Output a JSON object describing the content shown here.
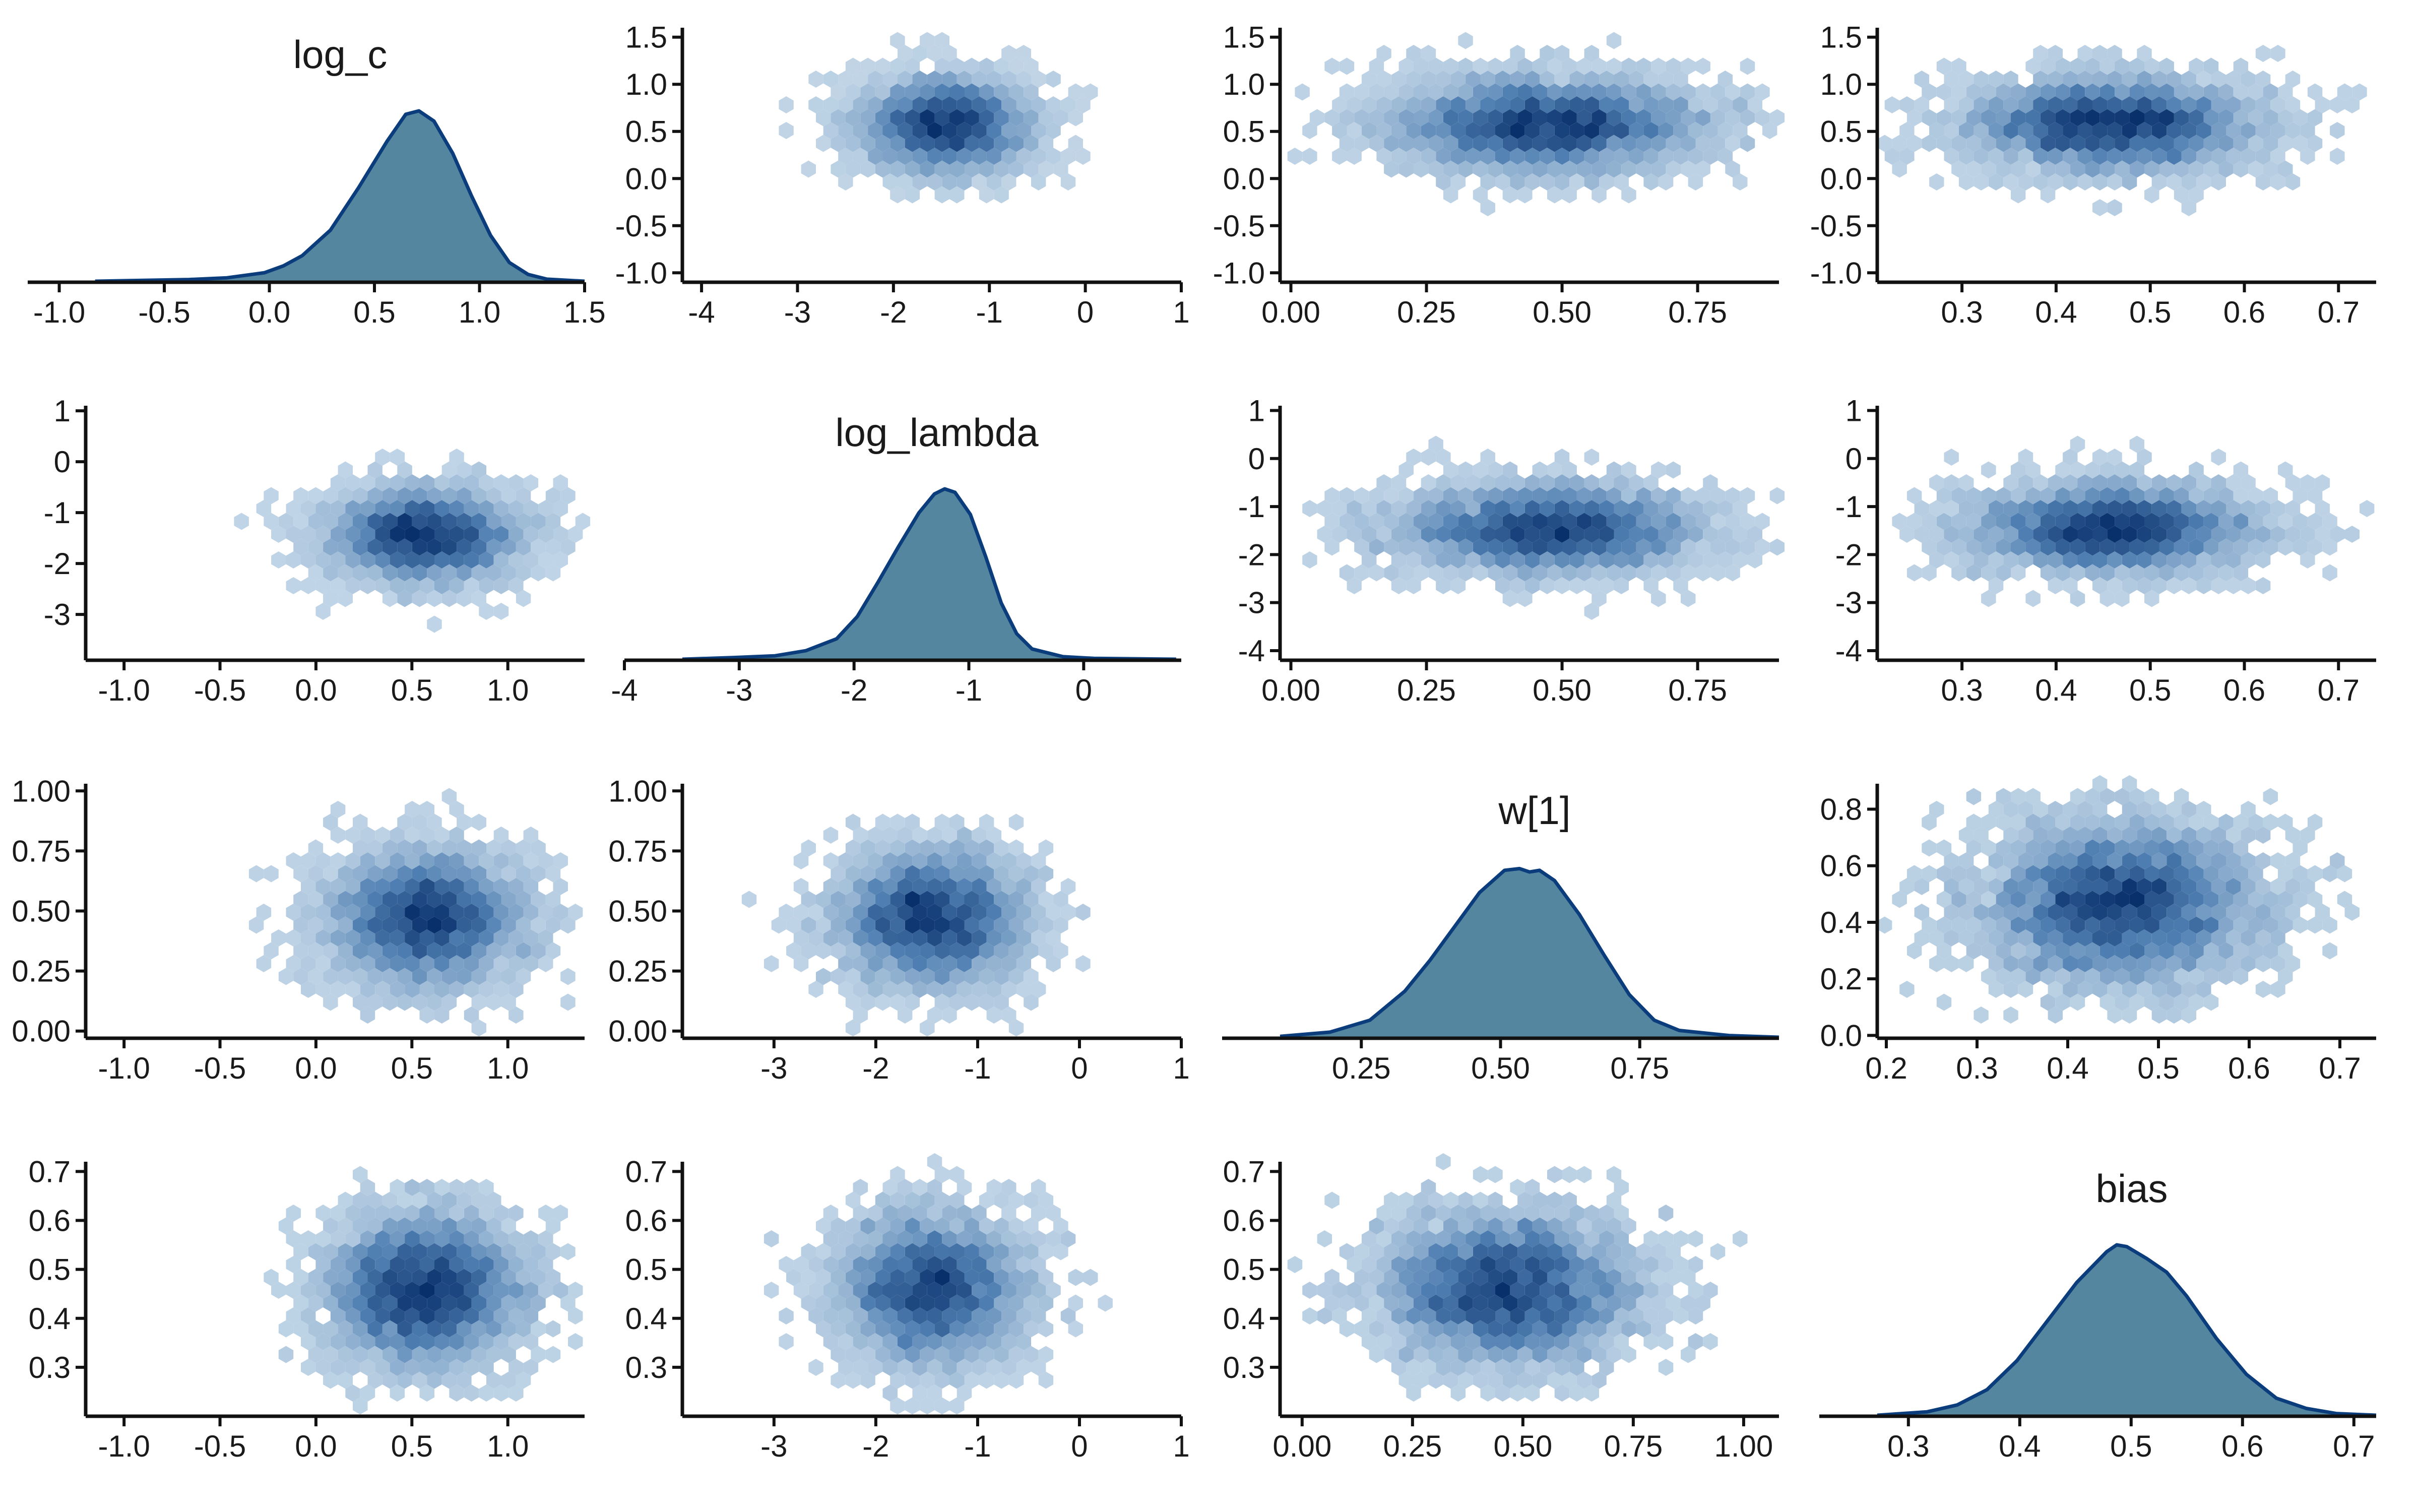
{
  "colors": {
    "density_fill": "#55869f",
    "density_line": "#0b3d7c",
    "hex_light": "#c6d9e9",
    "hex_mid": "#4f7fb2",
    "hex_dark": "#08306b",
    "axis": "#111111",
    "background": "#ffffff"
  },
  "chart_data": {
    "type": "pairs",
    "variables": [
      "log_c",
      "log_lambda",
      "w[1]",
      "bias"
    ],
    "layout": "4x4 grid; diagonal = density, off-diagonal = hexbin (x = column variable, y = row variable)",
    "marginals": [
      {
        "name": "log_c",
        "mean": 0.57,
        "sd": 0.25,
        "curve": [
          [
            -1.1,
            0
          ],
          [
            -0.9,
            0.004
          ],
          [
            -0.6,
            0.01
          ],
          [
            -0.4,
            0.02
          ],
          [
            -0.2,
            0.05
          ],
          [
            -0.1,
            0.09
          ],
          [
            0,
            0.15
          ],
          [
            0.15,
            0.3
          ],
          [
            0.3,
            0.55
          ],
          [
            0.45,
            0.82
          ],
          [
            0.55,
            0.98
          ],
          [
            0.62,
            1.0
          ],
          [
            0.7,
            0.94
          ],
          [
            0.8,
            0.75
          ],
          [
            0.9,
            0.5
          ],
          [
            1.0,
            0.27
          ],
          [
            1.1,
            0.11
          ],
          [
            1.2,
            0.04
          ],
          [
            1.3,
            0.012
          ],
          [
            1.5,
            0
          ]
        ],
        "xlim": [
          -1.15,
          1.5
        ],
        "ticks": [
          -1.0,
          -0.5,
          0.0,
          0.5,
          1.0,
          1.5
        ],
        "tick_labels": [
          "-1.0",
          "-0.5",
          "0.0",
          "0.5",
          "1.0",
          "1.5"
        ]
      },
      {
        "name": "log_lambda",
        "mean": -1.45,
        "sd": 0.45,
        "curve": [
          [
            -4,
            0
          ],
          [
            -3.5,
            0.01
          ],
          [
            -3.1,
            0.02
          ],
          [
            -2.8,
            0.05
          ],
          [
            -2.5,
            0.12
          ],
          [
            -2.3,
            0.25
          ],
          [
            -2.1,
            0.45
          ],
          [
            -1.9,
            0.66
          ],
          [
            -1.7,
            0.86
          ],
          [
            -1.55,
            0.97
          ],
          [
            -1.45,
            1.0
          ],
          [
            -1.35,
            0.98
          ],
          [
            -1.2,
            0.85
          ],
          [
            -1.05,
            0.6
          ],
          [
            -0.9,
            0.33
          ],
          [
            -0.75,
            0.15
          ],
          [
            -0.6,
            0.06
          ],
          [
            -0.3,
            0.015
          ],
          [
            0,
            0.005
          ],
          [
            0.8,
            0
          ]
        ],
        "xlim": [
          -4.0,
          0.85
        ],
        "ticks": [
          -4,
          -3,
          -2,
          -1,
          0
        ],
        "tick_labels": [
          "-4",
          "-3",
          "-2",
          "-1",
          "0"
        ]
      },
      {
        "name": "w[1]",
        "mean": 0.47,
        "sd": 0.14,
        "curve": [
          [
            0,
            0.005
          ],
          [
            0.1,
            0.03
          ],
          [
            0.18,
            0.1
          ],
          [
            0.25,
            0.27
          ],
          [
            0.3,
            0.45
          ],
          [
            0.35,
            0.65
          ],
          [
            0.4,
            0.85
          ],
          [
            0.45,
            0.98
          ],
          [
            0.48,
            0.99
          ],
          [
            0.5,
            0.97
          ],
          [
            0.52,
            0.98
          ],
          [
            0.55,
            0.92
          ],
          [
            0.6,
            0.72
          ],
          [
            0.65,
            0.48
          ],
          [
            0.7,
            0.25
          ],
          [
            0.75,
            0.1
          ],
          [
            0.8,
            0.04
          ],
          [
            0.9,
            0.01
          ],
          [
            1.0,
            0
          ]
        ],
        "xlim": [
          0.0,
          1.0
        ],
        "ticks": [
          0.25,
          0.5,
          0.75
        ],
        "tick_labels": [
          "0.25",
          "0.50",
          "0.75"
        ]
      },
      {
        "name": "bias",
        "mean": 0.46,
        "sd": 0.075,
        "curve": [
          [
            0.22,
            0
          ],
          [
            0.27,
            0.02
          ],
          [
            0.3,
            0.06
          ],
          [
            0.33,
            0.15
          ],
          [
            0.36,
            0.32
          ],
          [
            0.39,
            0.55
          ],
          [
            0.42,
            0.78
          ],
          [
            0.45,
            0.96
          ],
          [
            0.46,
            1.0
          ],
          [
            0.47,
            0.99
          ],
          [
            0.49,
            0.92
          ],
          [
            0.51,
            0.84
          ],
          [
            0.53,
            0.7
          ],
          [
            0.56,
            0.45
          ],
          [
            0.59,
            0.24
          ],
          [
            0.62,
            0.1
          ],
          [
            0.65,
            0.04
          ],
          [
            0.68,
            0.01
          ],
          [
            0.72,
            0
          ]
        ],
        "xlim": [
          0.22,
          0.72
        ],
        "ticks": [
          0.3,
          0.4,
          0.5,
          0.6,
          0.7
        ],
        "tick_labels": [
          "0.3",
          "0.4",
          "0.5",
          "0.6",
          "0.7"
        ]
      }
    ],
    "panels": [
      {
        "row": 0,
        "col": 1,
        "x_var": "log_lambda",
        "y_var": "log_c",
        "correlation": 0.0,
        "xlim": [
          -4.2,
          1.0
        ],
        "xticks": [
          -4,
          -3,
          -2,
          -1,
          0,
          1
        ],
        "xtick_labels": [
          "-4",
          "-3",
          "-2",
          "-1",
          "0",
          "1"
        ],
        "ylim": [
          -1.1,
          1.6
        ],
        "yticks": [
          -1.0,
          -0.5,
          0.0,
          0.5,
          1.0,
          1.5
        ],
        "ytick_labels": [
          "-1.0",
          "-0.5",
          "0.0",
          "0.5",
          "1.0",
          "1.5"
        ]
      },
      {
        "row": 0,
        "col": 2,
        "x_var": "w[1]",
        "y_var": "log_c",
        "correlation": 0.0,
        "xlim": [
          -0.02,
          0.9
        ],
        "xticks": [
          0.0,
          0.25,
          0.5,
          0.75
        ],
        "xtick_labels": [
          "0.00",
          "0.25",
          "0.50",
          "0.75"
        ],
        "ylim": [
          -1.1,
          1.6
        ],
        "yticks": [
          -1.0,
          -0.5,
          0.0,
          0.5,
          1.0,
          1.5
        ],
        "ytick_labels": [
          "-1.0",
          "-0.5",
          "0.0",
          "0.5",
          "1.0",
          "1.5"
        ]
      },
      {
        "row": 0,
        "col": 3,
        "x_var": "bias",
        "y_var": "log_c",
        "correlation": 0.0,
        "xlim": [
          0.21,
          0.74
        ],
        "xticks": [
          0.3,
          0.4,
          0.5,
          0.6,
          0.7
        ],
        "xtick_labels": [
          "0.3",
          "0.4",
          "0.5",
          "0.6",
          "0.7"
        ],
        "ylim": [
          -1.1,
          1.6
        ],
        "yticks": [
          -1.0,
          -0.5,
          0.0,
          0.5,
          1.0,
          1.5
        ],
        "ytick_labels": [
          "-1.0",
          "-0.5",
          "0.0",
          "0.5",
          "1.0",
          "1.5"
        ]
      },
      {
        "row": 1,
        "col": 0,
        "x_var": "log_c",
        "y_var": "log_lambda",
        "correlation": 0.0,
        "xlim": [
          -1.2,
          1.4
        ],
        "xticks": [
          -1.0,
          -0.5,
          0.0,
          0.5,
          1.0
        ],
        "xtick_labels": [
          "-1.0",
          "-0.5",
          "0.0",
          "0.5",
          "1.0"
        ],
        "ylim": [
          -3.9,
          1.1
        ],
        "yticks": [
          -3,
          -2,
          -1,
          0,
          1
        ],
        "ytick_labels": [
          "-3",
          "-2",
          "-1",
          "0",
          "1"
        ]
      },
      {
        "row": 1,
        "col": 2,
        "x_var": "w[1]",
        "y_var": "log_lambda",
        "correlation": 0.0,
        "xlim": [
          -0.02,
          0.9
        ],
        "xticks": [
          0.0,
          0.25,
          0.5,
          0.75
        ],
        "xtick_labels": [
          "0.00",
          "0.25",
          "0.50",
          "0.75"
        ],
        "ylim": [
          -4.2,
          1.1
        ],
        "yticks": [
          -4,
          -3,
          -2,
          -1,
          0,
          1
        ],
        "ytick_labels": [
          "-4",
          "-3",
          "-2",
          "-1",
          "0",
          "1"
        ]
      },
      {
        "row": 1,
        "col": 3,
        "x_var": "bias",
        "y_var": "log_lambda",
        "correlation": 0.0,
        "xlim": [
          0.21,
          0.74
        ],
        "xticks": [
          0.3,
          0.4,
          0.5,
          0.6,
          0.7
        ],
        "xtick_labels": [
          "0.3",
          "0.4",
          "0.5",
          "0.6",
          "0.7"
        ],
        "ylim": [
          -4.2,
          1.1
        ],
        "yticks": [
          -4,
          -3,
          -2,
          -1,
          0,
          1
        ],
        "ytick_labels": [
          "-4",
          "-3",
          "-2",
          "-1",
          "0",
          "1"
        ]
      },
      {
        "row": 2,
        "col": 0,
        "x_var": "log_c",
        "y_var": "w[1]",
        "correlation": 0.0,
        "xlim": [
          -1.2,
          1.4
        ],
        "xticks": [
          -1.0,
          -0.5,
          0.0,
          0.5,
          1.0
        ],
        "xtick_labels": [
          "-1.0",
          "-0.5",
          "0.0",
          "0.5",
          "1.0"
        ],
        "ylim": [
          -0.03,
          1.03
        ],
        "yticks": [
          0.0,
          0.25,
          0.5,
          0.75,
          1.0
        ],
        "ytick_labels": [
          "0.00",
          "0.25",
          "0.50",
          "0.75",
          "1.00"
        ]
      },
      {
        "row": 2,
        "col": 1,
        "x_var": "log_lambda",
        "y_var": "w[1]",
        "correlation": 0.0,
        "xlim": [
          -3.9,
          1.0
        ],
        "xticks": [
          -3,
          -2,
          -1,
          0,
          1
        ],
        "xtick_labels": [
          "-3",
          "-2",
          "-1",
          "0",
          "1"
        ],
        "ylim": [
          -0.03,
          1.03
        ],
        "yticks": [
          0.0,
          0.25,
          0.5,
          0.75,
          1.0
        ],
        "ytick_labels": [
          "0.00",
          "0.25",
          "0.50",
          "0.75",
          "1.00"
        ]
      },
      {
        "row": 2,
        "col": 3,
        "x_var": "bias",
        "y_var": "w[1]",
        "correlation": 0.0,
        "xlim": [
          0.19,
          0.74
        ],
        "xticks": [
          0.2,
          0.3,
          0.4,
          0.5,
          0.6,
          0.7
        ],
        "xtick_labels": [
          "0.2",
          "0.3",
          "0.4",
          "0.5",
          "0.6",
          "0.7"
        ],
        "ylim": [
          -0.01,
          0.89
        ],
        "yticks": [
          0.0,
          0.2,
          0.4,
          0.6,
          0.8
        ],
        "ytick_labels": [
          "0.0",
          "0.2",
          "0.4",
          "0.6",
          "0.8"
        ]
      },
      {
        "row": 3,
        "col": 0,
        "x_var": "log_c",
        "y_var": "bias",
        "correlation": 0.0,
        "xlim": [
          -1.2,
          1.4
        ],
        "xticks": [
          -1.0,
          -0.5,
          0.0,
          0.5,
          1.0
        ],
        "xtick_labels": [
          "-1.0",
          "-0.5",
          "0.0",
          "0.5",
          "1.0"
        ],
        "ylim": [
          0.2,
          0.72
        ],
        "yticks": [
          0.3,
          0.4,
          0.5,
          0.6,
          0.7
        ],
        "ytick_labels": [
          "0.3",
          "0.4",
          "0.5",
          "0.6",
          "0.7"
        ]
      },
      {
        "row": 3,
        "col": 1,
        "x_var": "log_lambda",
        "y_var": "bias",
        "correlation": 0.0,
        "xlim": [
          -3.9,
          1.0
        ],
        "xticks": [
          -3,
          -2,
          -1,
          0,
          1
        ],
        "xtick_labels": [
          "-3",
          "-2",
          "-1",
          "0",
          "1"
        ],
        "ylim": [
          0.2,
          0.72
        ],
        "yticks": [
          0.3,
          0.4,
          0.5,
          0.6,
          0.7
        ],
        "ytick_labels": [
          "0.3",
          "0.4",
          "0.5",
          "0.6",
          "0.7"
        ]
      },
      {
        "row": 3,
        "col": 2,
        "x_var": "w[1]",
        "y_var": "bias",
        "correlation": 0.0,
        "xlim": [
          -0.05,
          1.08
        ],
        "xticks": [
          0.0,
          0.25,
          0.5,
          0.75,
          1.0
        ],
        "xtick_labels": [
          "0.00",
          "0.25",
          "0.50",
          "0.75",
          "1.00"
        ],
        "ylim": [
          0.2,
          0.72
        ],
        "yticks": [
          0.3,
          0.4,
          0.5,
          0.6,
          0.7
        ],
        "ytick_labels": [
          "0.3",
          "0.4",
          "0.5",
          "0.6",
          "0.7"
        ]
      }
    ]
  }
}
